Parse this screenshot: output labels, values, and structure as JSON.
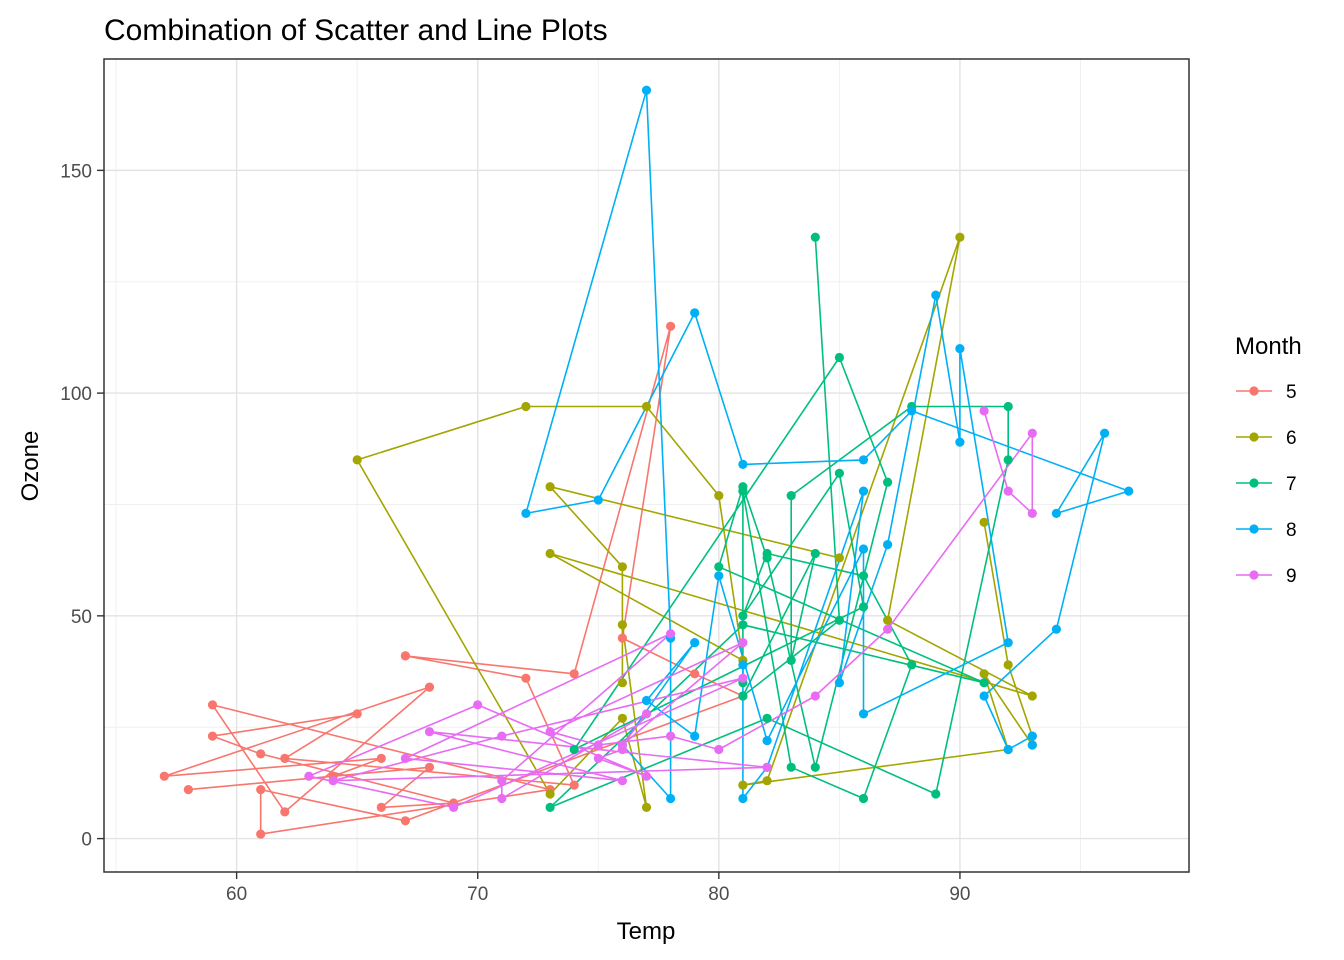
{
  "chart_data": {
    "type": "line",
    "title": "Combination of Scatter and Line Plots",
    "xlabel": "Temp",
    "ylabel": "Ozone",
    "xlim": [
      54.5,
      99.5
    ],
    "ylim": [
      -7.5,
      175
    ],
    "x_ticks": [
      60,
      70,
      80,
      90
    ],
    "y_ticks": [
      0,
      50,
      100,
      150
    ],
    "x_tick_labels": [
      "60",
      "70",
      "80",
      "90"
    ],
    "y_tick_labels": [
      "0",
      "50",
      "100",
      "150"
    ],
    "grid": true,
    "legend": {
      "title": "Month",
      "position": "right"
    },
    "series": [
      {
        "name": "5",
        "color": "#F8766D",
        "points": [
          [
            67,
            41
          ],
          [
            72,
            36
          ],
          [
            74,
            12
          ],
          [
            62,
            18
          ],
          [
            65,
            28
          ],
          [
            59,
            23
          ],
          [
            61,
            19
          ],
          [
            69,
            8
          ],
          [
            66,
            7
          ],
          [
            68,
            16
          ],
          [
            58,
            11
          ],
          [
            64,
            14
          ],
          [
            66,
            18
          ],
          [
            57,
            14
          ],
          [
            68,
            34
          ],
          [
            62,
            6
          ],
          [
            59,
            30
          ],
          [
            73,
            11
          ],
          [
            61,
            1
          ],
          [
            61,
            11
          ],
          [
            67,
            4
          ],
          [
            81,
            32
          ],
          [
            79,
            37
          ],
          [
            76,
            45
          ],
          [
            78,
            115
          ],
          [
            74,
            37
          ],
          [
            67,
            41
          ]
        ]
      },
      {
        "name": "6",
        "color": "#A3A500",
        "points": [
          [
            91,
            71
          ],
          [
            92,
            39
          ],
          [
            93,
            23
          ],
          [
            93,
            21
          ],
          [
            91,
            37
          ],
          [
            92,
            20
          ],
          [
            81,
            12
          ],
          [
            82,
            13
          ],
          [
            90,
            135
          ],
          [
            87,
            49
          ],
          [
            93,
            32
          ],
          [
            73,
            64
          ],
          [
            81,
            40
          ],
          [
            80,
            77
          ],
          [
            77,
            97
          ],
          [
            72,
            97
          ],
          [
            65,
            85
          ],
          [
            73,
            10
          ],
          [
            76,
            27
          ],
          [
            77,
            7
          ],
          [
            76,
            48
          ],
          [
            76,
            35
          ],
          [
            76,
            61
          ],
          [
            73,
            79
          ],
          [
            85,
            63
          ]
        ]
      },
      {
        "name": "7",
        "color": "#00BF7D",
        "points": [
          [
            84,
            135
          ],
          [
            85,
            49
          ],
          [
            81,
            32
          ],
          [
            84,
            64
          ],
          [
            83,
            40
          ],
          [
            83,
            77
          ],
          [
            88,
            97
          ],
          [
            92,
            97
          ],
          [
            92,
            85
          ],
          [
            89,
            10
          ],
          [
            82,
            27
          ],
          [
            73,
            7
          ],
          [
            81,
            48
          ],
          [
            91,
            35
          ],
          [
            80,
            61
          ],
          [
            81,
            79
          ],
          [
            82,
            63
          ],
          [
            84,
            16
          ],
          [
            87,
            80
          ],
          [
            85,
            108
          ],
          [
            74,
            20
          ],
          [
            86,
            52
          ],
          [
            85,
            82
          ],
          [
            81,
            50
          ],
          [
            82,
            64
          ],
          [
            86,
            59
          ],
          [
            88,
            39
          ],
          [
            86,
            9
          ],
          [
            83,
            16
          ],
          [
            81,
            78
          ],
          [
            81,
            35
          ]
        ]
      },
      {
        "name": "8",
        "color": "#00B0F6",
        "points": [
          [
            81,
            39
          ],
          [
            81,
            9
          ],
          [
            82,
            16
          ],
          [
            86,
            78
          ],
          [
            85,
            35
          ],
          [
            87,
            66
          ],
          [
            89,
            122
          ],
          [
            90,
            89
          ],
          [
            90,
            110
          ],
          [
            92,
            44
          ],
          [
            86,
            28
          ],
          [
            86,
            65
          ],
          [
            82,
            22
          ],
          [
            80,
            59
          ],
          [
            79,
            23
          ],
          [
            77,
            31
          ],
          [
            79,
            44
          ],
          [
            76,
            21
          ],
          [
            78,
            9
          ],
          [
            78,
            45
          ],
          [
            77,
            168
          ],
          [
            72,
            73
          ],
          [
            75,
            76
          ],
          [
            79,
            118
          ],
          [
            81,
            84
          ],
          [
            86,
            85
          ],
          [
            88,
            96
          ],
          [
            97,
            78
          ],
          [
            94,
            73
          ],
          [
            96,
            91
          ],
          [
            94,
            47
          ],
          [
            91,
            32
          ],
          [
            92,
            20
          ],
          [
            93,
            23
          ],
          [
            93,
            21
          ]
        ]
      },
      {
        "name": "9",
        "color": "#E76BF3",
        "points": [
          [
            91,
            96
          ],
          [
            92,
            78
          ],
          [
            93,
            73
          ],
          [
            93,
            91
          ],
          [
            87,
            47
          ],
          [
            84,
            32
          ],
          [
            80,
            20
          ],
          [
            78,
            23
          ],
          [
            75,
            21
          ],
          [
            73,
            24
          ],
          [
            81,
            44
          ],
          [
            76,
            21
          ],
          [
            77,
            28
          ],
          [
            71,
            9
          ],
          [
            71,
            13
          ],
          [
            78,
            46
          ],
          [
            67,
            18
          ],
          [
            76,
            13
          ],
          [
            68,
            24
          ],
          [
            82,
            16
          ],
          [
            64,
            13
          ],
          [
            71,
            23
          ],
          [
            81,
            36
          ],
          [
            69,
            7
          ],
          [
            63,
            14
          ],
          [
            70,
            30
          ],
          [
            77,
            14
          ],
          [
            75,
            18
          ],
          [
            76,
            20
          ]
        ]
      }
    ]
  }
}
